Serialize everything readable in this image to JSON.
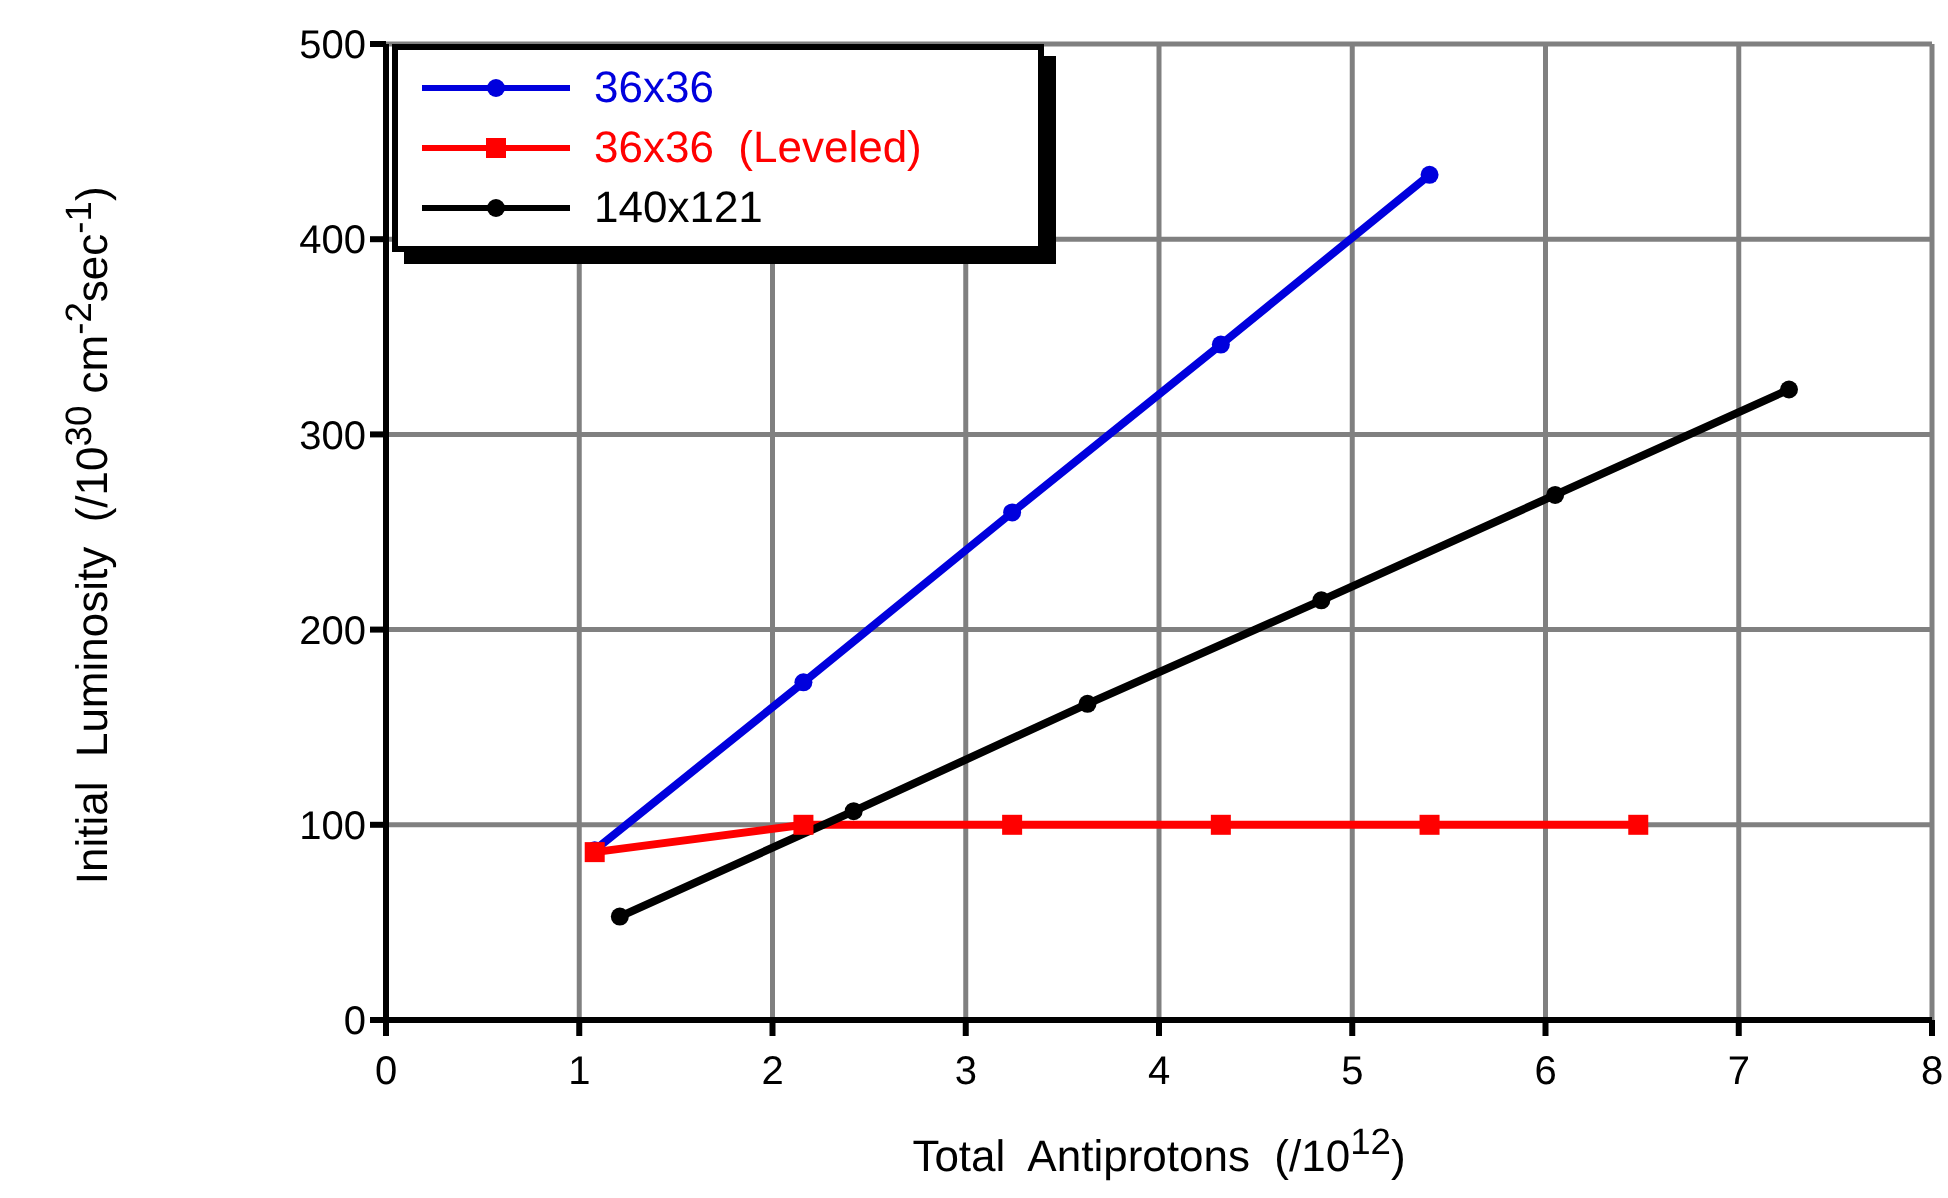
{
  "chart_data": {
    "type": "line",
    "xlabel": "Total  Antiprotons  (/10$^{12}$)",
    "ylabel": "Initial  Luminosity  (/10$^{30}$ cm$^{-2}$sec$^{-1}$)",
    "series": [
      {
        "name": "36x36",
        "color": "#0000dd",
        "marker": "circle",
        "x": [
          1.08,
          2.16,
          3.24,
          4.32,
          5.4
        ],
        "values": [
          87,
          173,
          260,
          346,
          433
        ]
      },
      {
        "name": "36x36  (Leveled)",
        "color": "#ff0000",
        "marker": "square",
        "x": [
          1.08,
          2.16,
          3.24,
          4.32,
          5.4,
          6.48
        ],
        "values": [
          86,
          100,
          100,
          100,
          100,
          100
        ]
      },
      {
        "name": "140x121",
        "color": "#000000",
        "marker": "circle",
        "x": [
          1.21,
          2.42,
          3.63,
          4.84,
          6.05,
          7.26
        ],
        "values": [
          53,
          107,
          162,
          215,
          269,
          323
        ]
      }
    ],
    "xlim": [
      0,
      8
    ],
    "xticks": [
      0,
      1,
      2,
      3,
      4,
      5,
      6,
      7,
      8
    ],
    "ylim": [
      0,
      500
    ],
    "yticks": [
      0,
      100,
      200,
      300,
      400,
      500
    ],
    "grid": true,
    "legend": "top left",
    "line_style": "solid"
  }
}
